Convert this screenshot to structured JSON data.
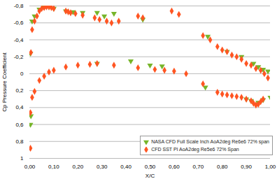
{
  "chart_data": {
    "type": "scatter",
    "x_label": "X/C",
    "y_label": "Cp Pressure Coefficient",
    "xlim": [
      0,
      1
    ],
    "ylim": [
      -0.8,
      1
    ],
    "xticks": [
      {
        "value": 0,
        "label": "0,00"
      },
      {
        "value": 0.1,
        "label": "0,10"
      },
      {
        "value": 0.2,
        "label": "0,20"
      },
      {
        "value": 0.3,
        "label": "0,30"
      },
      {
        "value": 0.4,
        "label": "0,40"
      },
      {
        "value": 0.5,
        "label": "0,50"
      },
      {
        "value": 0.6,
        "label": "0,60"
      },
      {
        "value": 0.7,
        "label": "0,70"
      },
      {
        "value": 0.8,
        "label": "0,80"
      },
      {
        "value": 0.9,
        "label": "0,90"
      },
      {
        "value": 1,
        "label": "1,00"
      }
    ],
    "yticks": [
      {
        "value": -0.8,
        "label": "-0,8"
      },
      {
        "value": -0.6,
        "label": "-0,6"
      },
      {
        "value": -0.4,
        "label": "-0,4"
      },
      {
        "value": -0.2,
        "label": "-0,2"
      },
      0,
      {
        "value": 0.2,
        "label": "0,2"
      },
      {
        "value": 0.4,
        "label": "0,4"
      },
      {
        "value": 0.6,
        "label": "0,6"
      },
      {
        "value": 0.8,
        "label": "0,8"
      },
      1
    ],
    "grid": true,
    "legend": "lower right",
    "series": [
      {
        "name": "NASA CFD Full Scale Inch AoA2deg Re6e6 72% span",
        "color": "#77b52a",
        "marker": "triangle-down",
        "x": [
          0.003,
          0.01,
          0.02,
          0.04,
          0.06,
          0.08,
          0.1,
          0.15,
          0.18,
          0.22,
          0.28,
          0.31,
          0.35,
          0.47,
          0.74,
          0.82,
          0.88,
          0.93,
          0.95,
          0.97,
          0.99,
          0.003,
          0.005,
          0.28,
          0.42,
          0.5,
          0.55,
          0.73,
          0.9,
          0.92,
          0.95,
          0.97,
          1.0
        ],
        "values": [
          -0.24,
          -0.62,
          -0.68,
          -0.76,
          -0.79,
          -0.79,
          -0.77,
          -0.74,
          -0.73,
          -0.72,
          -0.72,
          -0.68,
          -0.71,
          -0.64,
          -0.44,
          -0.26,
          -0.2,
          -0.12,
          -0.08,
          -0.05,
          -0.03,
          0.6,
          0.5,
          -0.12,
          -0.15,
          -0.1,
          -0.09,
          0.16,
          0.3,
          0.32,
          0.34,
          0.31,
          0.28
        ]
      },
      {
        "name": "CFD SST PI AoA2deg Re5e6 72% Span",
        "color": "#ff5522",
        "marker": "diamond",
        "x": [
          0.005,
          0.01,
          0.02,
          0.03,
          0.04,
          0.05,
          0.06,
          0.07,
          0.08,
          0.09,
          0.1,
          0.15,
          0.16,
          0.17,
          0.19,
          0.22,
          0.27,
          0.29,
          0.32,
          0.34,
          0.37,
          0.45,
          0.47,
          0.59,
          0.62,
          0.72,
          0.75,
          0.78,
          0.8,
          0.82,
          0.84,
          0.86,
          0.88,
          0.9,
          0.92,
          0.94,
          0.96,
          0.975,
          0.99,
          0.003,
          0.003,
          0.01,
          0.02,
          0.04,
          0.06,
          0.08,
          0.1,
          0.15,
          0.2,
          0.25,
          0.28,
          0.35,
          0.45,
          0.52,
          0.56,
          0.6,
          0.65,
          0.72,
          0.78,
          0.8,
          0.82,
          0.84,
          0.86,
          0.88,
          0.9,
          0.92,
          0.93,
          0.94,
          0.95,
          0.96,
          0.97
        ],
        "values": [
          -0.25,
          -0.52,
          -0.62,
          -0.68,
          -0.74,
          -0.77,
          -0.78,
          -0.79,
          -0.79,
          -0.78,
          -0.77,
          -0.74,
          -0.73,
          -0.72,
          -0.71,
          -0.69,
          -0.66,
          -0.64,
          -0.62,
          -0.6,
          -0.62,
          -0.68,
          -0.66,
          -0.74,
          -0.7,
          -0.45,
          -0.4,
          -0.32,
          -0.28,
          -0.26,
          -0.22,
          -0.2,
          -0.17,
          -0.12,
          -0.1,
          -0.06,
          -0.04,
          0.0,
          0.05,
          0.46,
          0.88,
          0.28,
          0.21,
          0.08,
          0.03,
          -0.02,
          -0.04,
          -0.08,
          -0.1,
          -0.11,
          -0.12,
          -0.1,
          -0.07,
          -0.05,
          -0.04,
          -0.03,
          0.0,
          0.12,
          0.22,
          0.24,
          0.25,
          0.26,
          0.27,
          0.28,
          0.3,
          0.32,
          0.35,
          0.37,
          0.36,
          0.33,
          0.3
        ]
      }
    ]
  }
}
